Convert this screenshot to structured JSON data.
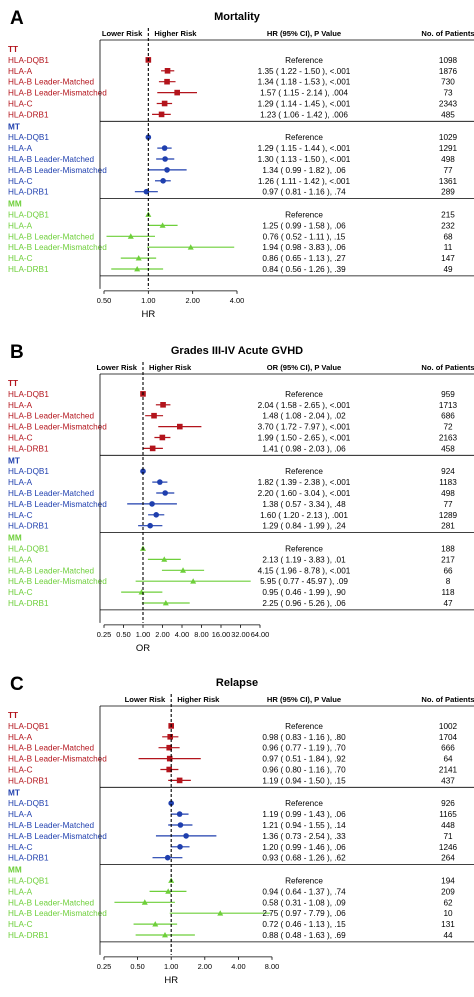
{
  "colors": {
    "TT": "#b3141c",
    "MT": "#1f3fae",
    "MM": "#6ecf3a",
    "axis": "#000000"
  },
  "header": {
    "lower_risk": "Lower Risk",
    "higher_risk": "Higher Risk",
    "n_label": "No. of Patients"
  },
  "chart_data": [
    {
      "type": "forest",
      "panel_letter": "A",
      "title": "Mortality",
      "stat_header": "HR (95% CI), P Value",
      "xlabel": "HR",
      "xscale": "log",
      "xlim": [
        0.5,
        4.0
      ],
      "ticks": [
        0.5,
        1.0,
        2.0,
        4.0
      ],
      "tick_labels": [
        "0.50",
        "1.00",
        "2.00",
        "4.00"
      ],
      "groups": [
        {
          "name": "TT",
          "rows": [
            {
              "label": "HLA-DQB1",
              "est": 1.0,
              "lo": 1.0,
              "hi": 1.0,
              "text": "Reference",
              "n": "1098"
            },
            {
              "label": "HLA-A",
              "est": 1.35,
              "lo": 1.22,
              "hi": 1.5,
              "text": "1.35 ( 1.22 - 1.50 ), <.001",
              "n": "1876"
            },
            {
              "label": "HLA-B Leader-Matched",
              "est": 1.34,
              "lo": 1.18,
              "hi": 1.53,
              "text": "1.34 ( 1.18 - 1.53 ), <.001",
              "n": "730"
            },
            {
              "label": "HLA-B Leader-Mismatched",
              "est": 1.57,
              "lo": 1.15,
              "hi": 2.14,
              "text": "1.57 ( 1.15 - 2.14 ), .004",
              "n": "73"
            },
            {
              "label": "HLA-C",
              "est": 1.29,
              "lo": 1.14,
              "hi": 1.45,
              "text": "1.29 ( 1.14 - 1.45 ), <.001",
              "n": "2343"
            },
            {
              "label": "HLA-DRB1",
              "est": 1.23,
              "lo": 1.06,
              "hi": 1.42,
              "text": "1.23 ( 1.06 - 1.42 ), .006",
              "n": "485"
            }
          ]
        },
        {
          "name": "MT",
          "rows": [
            {
              "label": "HLA-DQB1",
              "est": 1.0,
              "lo": 1.0,
              "hi": 1.0,
              "text": "Reference",
              "n": "1029"
            },
            {
              "label": "HLA-A",
              "est": 1.29,
              "lo": 1.15,
              "hi": 1.44,
              "text": "1.29 ( 1.15 - 1.44 ), <.001",
              "n": "1291"
            },
            {
              "label": "HLA-B Leader-Matched",
              "est": 1.3,
              "lo": 1.13,
              "hi": 1.5,
              "text": "1.30 ( 1.13 - 1.50 ), <.001",
              "n": "498"
            },
            {
              "label": "HLA-B Leader-Mismatched",
              "est": 1.34,
              "lo": 0.99,
              "hi": 1.82,
              "text": "1.34 ( 0.99 - 1.82 ), .06",
              "n": "77"
            },
            {
              "label": "HLA-C",
              "est": 1.26,
              "lo": 1.11,
              "hi": 1.42,
              "text": "1.26 ( 1.11 - 1.42 ), <.001",
              "n": "1361"
            },
            {
              "label": "HLA-DRB1",
              "est": 0.97,
              "lo": 0.81,
              "hi": 1.16,
              "text": "0.97 ( 0.81 - 1.16 ), .74",
              "n": "289"
            }
          ]
        },
        {
          "name": "MM",
          "rows": [
            {
              "label": "HLA-DQB1",
              "est": 1.0,
              "lo": 1.0,
              "hi": 1.0,
              "text": "Reference",
              "n": "215"
            },
            {
              "label": "HLA-A",
              "est": 1.25,
              "lo": 0.99,
              "hi": 1.58,
              "text": "1.25 ( 0.99 - 1.58 ), .06",
              "n": "232"
            },
            {
              "label": "HLA-B Leader-Matched",
              "est": 0.76,
              "lo": 0.52,
              "hi": 1.11,
              "text": "0.76 ( 0.52 - 1.11 ), .15",
              "n": "68"
            },
            {
              "label": "HLA-B Leader-Mismatched",
              "est": 1.94,
              "lo": 0.98,
              "hi": 3.83,
              "text": "1.94 ( 0.98 - 3.83 ), .06",
              "n": "11"
            },
            {
              "label": "HLA-C",
              "est": 0.86,
              "lo": 0.65,
              "hi": 1.13,
              "text": "0.86 ( 0.65 - 1.13 ), .27",
              "n": "147"
            },
            {
              "label": "HLA-DRB1",
              "est": 0.84,
              "lo": 0.56,
              "hi": 1.26,
              "text": "0.84 ( 0.56 - 1.26 ), .39",
              "n": "49"
            }
          ]
        }
      ]
    },
    {
      "type": "forest",
      "panel_letter": "B",
      "title": "Grades III-IV Acute GVHD",
      "stat_header": "OR (95% CI), P Value",
      "xlabel": "OR",
      "xscale": "log",
      "xlim": [
        0.25,
        64.0
      ],
      "ticks": [
        0.25,
        0.5,
        1.0,
        2.0,
        4.0,
        8.0,
        16.0,
        32.0,
        64.0
      ],
      "tick_labels": [
        "0.25",
        "0.50",
        "1.00",
        "2.00",
        "4.00",
        "8.00",
        "16.00",
        "32.00",
        "64.00"
      ],
      "groups": [
        {
          "name": "TT",
          "rows": [
            {
              "label": "HLA-DQB1",
              "est": 1.0,
              "lo": 1.0,
              "hi": 1.0,
              "text": "Reference",
              "n": "959"
            },
            {
              "label": "HLA-A",
              "est": 2.04,
              "lo": 1.58,
              "hi": 2.65,
              "text": "2.04 ( 1.58 - 2.65 ), <.001",
              "n": "1713"
            },
            {
              "label": "HLA-B Leader-Matched",
              "est": 1.48,
              "lo": 1.08,
              "hi": 2.04,
              "text": "1.48 ( 1.08 - 2.04 ), .02",
              "n": "686"
            },
            {
              "label": "HLA-B Leader-Mismatched",
              "est": 3.7,
              "lo": 1.72,
              "hi": 7.97,
              "text": "3.70 ( 1.72 - 7.97 ), <.001",
              "n": "72"
            },
            {
              "label": "HLA-C",
              "est": 1.99,
              "lo": 1.5,
              "hi": 2.65,
              "text": "1.99 ( 1.50 - 2.65 ), <.001",
              "n": "2163"
            },
            {
              "label": "HLA-DRB1",
              "est": 1.41,
              "lo": 0.98,
              "hi": 2.03,
              "text": "1.41 ( 0.98 - 2.03 ), .06",
              "n": "458"
            }
          ]
        },
        {
          "name": "MT",
          "rows": [
            {
              "label": "HLA-DQB1",
              "est": 1.0,
              "lo": 1.0,
              "hi": 1.0,
              "text": "Reference",
              "n": "924"
            },
            {
              "label": "HLA-A",
              "est": 1.82,
              "lo": 1.39,
              "hi": 2.38,
              "text": "1.82 ( 1.39 - 2.38 ), <.001",
              "n": "1183"
            },
            {
              "label": "HLA-B Leader-Matched",
              "est": 2.2,
              "lo": 1.6,
              "hi": 3.04,
              "text": "2.20 ( 1.60 - 3.04 ), <.001",
              "n": "498"
            },
            {
              "label": "HLA-B Leader-Mismatched",
              "est": 1.38,
              "lo": 0.57,
              "hi": 3.34,
              "text": "1.38 ( 0.57 - 3.34 ), .48",
              "n": "77"
            },
            {
              "label": "HLA-C",
              "est": 1.6,
              "lo": 1.2,
              "hi": 2.13,
              "text": "1.60 ( 1.20 - 2.13 ), .001",
              "n": "1289"
            },
            {
              "label": "HLA-DRB1",
              "est": 1.29,
              "lo": 0.84,
              "hi": 1.99,
              "text": "1.29 ( 0.84 - 1.99 ), .24",
              "n": "281"
            }
          ]
        },
        {
          "name": "MM",
          "rows": [
            {
              "label": "HLA-DQB1",
              "est": 1.0,
              "lo": 1.0,
              "hi": 1.0,
              "text": "Reference",
              "n": "188"
            },
            {
              "label": "HLA-A",
              "est": 2.13,
              "lo": 1.19,
              "hi": 3.83,
              "text": "2.13 ( 1.19 - 3.83 ), .01",
              "n": "217"
            },
            {
              "label": "HLA-B Leader-Matched",
              "est": 4.15,
              "lo": 1.96,
              "hi": 8.78,
              "text": "4.15 ( 1.96 - 8.78 ), <.001",
              "n": "66"
            },
            {
              "label": "HLA-B Leader-Mismatched",
              "est": 5.95,
              "lo": 0.77,
              "hi": 45.97,
              "text": "5.95 ( 0.77 - 45.97 ), .09",
              "n": "8"
            },
            {
              "label": "HLA-C",
              "est": 0.95,
              "lo": 0.46,
              "hi": 1.99,
              "text": "0.95 ( 0.46 - 1.99 ), .90",
              "n": "118"
            },
            {
              "label": "HLA-DRB1",
              "est": 2.25,
              "lo": 0.96,
              "hi": 5.26,
              "text": "2.25 ( 0.96 - 5.26 ), .06",
              "n": "47"
            }
          ]
        }
      ]
    },
    {
      "type": "forest",
      "panel_letter": "C",
      "title": "Relapse",
      "stat_header": "HR (95% CI), P Value",
      "xlabel": "HR",
      "xscale": "log",
      "xlim": [
        0.25,
        8.0
      ],
      "ticks": [
        0.25,
        0.5,
        1.0,
        2.0,
        4.0,
        8.0
      ],
      "tick_labels": [
        "0.25",
        "0.50",
        "1.00",
        "2.00",
        "4.00",
        "8.00"
      ],
      "groups": [
        {
          "name": "TT",
          "rows": [
            {
              "label": "HLA-DQB1",
              "est": 1.0,
              "lo": 1.0,
              "hi": 1.0,
              "text": "Reference",
              "n": "1002"
            },
            {
              "label": "HLA-A",
              "est": 0.98,
              "lo": 0.83,
              "hi": 1.16,
              "text": "0.98 ( 0.83 - 1.16 ), .80",
              "n": "1704"
            },
            {
              "label": "HLA-B Leader-Matched",
              "est": 0.96,
              "lo": 0.77,
              "hi": 1.19,
              "text": "0.96 ( 0.77 - 1.19 ), .70",
              "n": "666"
            },
            {
              "label": "HLA-B Leader-Mismatched",
              "est": 0.97,
              "lo": 0.51,
              "hi": 1.84,
              "text": "0.97 ( 0.51 - 1.84 ), .92",
              "n": "64"
            },
            {
              "label": "HLA-C",
              "est": 0.96,
              "lo": 0.8,
              "hi": 1.16,
              "text": "0.96 ( 0.80 - 1.16 ), .70",
              "n": "2141"
            },
            {
              "label": "HLA-DRB1",
              "est": 1.19,
              "lo": 0.94,
              "hi": 1.5,
              "text": "1.19 ( 0.94 - 1.50 ), .15",
              "n": "437"
            }
          ]
        },
        {
          "name": "MT",
          "rows": [
            {
              "label": "HLA-DQB1",
              "est": 1.0,
              "lo": 1.0,
              "hi": 1.0,
              "text": "Reference",
              "n": "926"
            },
            {
              "label": "HLA-A",
              "est": 1.19,
              "lo": 0.99,
              "hi": 1.43,
              "text": "1.19 ( 0.99 - 1.43 ), .06",
              "n": "1165"
            },
            {
              "label": "HLA-B Leader-Matched",
              "est": 1.21,
              "lo": 0.94,
              "hi": 1.55,
              "text": "1.21 ( 0.94 - 1.55 ), .14",
              "n": "448"
            },
            {
              "label": "HLA-B Leader-Mismatched",
              "est": 1.36,
              "lo": 0.73,
              "hi": 2.54,
              "text": "1.36 ( 0.73 - 2.54 ), .33",
              "n": "71"
            },
            {
              "label": "HLA-C",
              "est": 1.2,
              "lo": 0.99,
              "hi": 1.46,
              "text": "1.20 ( 0.99 - 1.46 ), .06",
              "n": "1246"
            },
            {
              "label": "HLA-DRB1",
              "est": 0.93,
              "lo": 0.68,
              "hi": 1.26,
              "text": "0.93 ( 0.68 - 1.26 ), .62",
              "n": "264"
            }
          ]
        },
        {
          "name": "MM",
          "rows": [
            {
              "label": "HLA-DQB1",
              "est": 1.0,
              "lo": 1.0,
              "hi": 1.0,
              "text": "Reference",
              "n": "194"
            },
            {
              "label": "HLA-A",
              "est": 0.94,
              "lo": 0.64,
              "hi": 1.37,
              "text": "0.94 ( 0.64 - 1.37 ), .74",
              "n": "209"
            },
            {
              "label": "HLA-B Leader-Matched",
              "est": 0.58,
              "lo": 0.31,
              "hi": 1.08,
              "text": "0.58 ( 0.31 - 1.08 ), .09",
              "n": "62"
            },
            {
              "label": "HLA-B Leader-Mismatched",
              "est": 2.75,
              "lo": 0.97,
              "hi": 7.79,
              "text": "2.75 ( 0.97 - 7.79 ), .06",
              "n": "10"
            },
            {
              "label": "HLA-C",
              "est": 0.72,
              "lo": 0.46,
              "hi": 1.13,
              "text": "0.72 ( 0.46 - 1.13 ), .15",
              "n": "131"
            },
            {
              "label": "HLA-DRB1",
              "est": 0.88,
              "lo": 0.48,
              "hi": 1.63,
              "text": "0.88 ( 0.48 - 1.63 ), .69",
              "n": "44"
            }
          ]
        }
      ]
    }
  ]
}
